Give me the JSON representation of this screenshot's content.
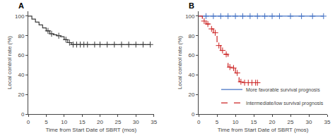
{
  "chart_data": [
    {
      "type": "line",
      "xlabel": "Time from Start Date of SBRT (mos)",
      "ylabel": "Local control rate (%)",
      "xlim": [
        0,
        35
      ],
      "ylim": [
        0,
        105
      ],
      "xticks": [
        0,
        5,
        10,
        15,
        20,
        25,
        30,
        35
      ],
      "yticks": [
        0,
        20,
        40,
        60,
        80,
        100
      ],
      "grid": false,
      "annotations": [
        "A"
      ],
      "series": [
        {
          "type": "line",
          "color": "#3a3a3a",
          "line_style": "solid",
          "x": [
            0,
            1,
            1,
            2,
            2,
            3,
            3,
            4,
            4,
            5,
            5,
            6,
            6,
            7,
            7,
            8,
            8,
            9,
            9,
            10,
            10,
            11,
            11,
            12,
            12,
            34
          ],
          "values": [
            100,
            100,
            97,
            97,
            94,
            94,
            91,
            91,
            88,
            88,
            85,
            85,
            82,
            82,
            81,
            81,
            80,
            80,
            79,
            79,
            76,
            76,
            73,
            73,
            71,
            71
          ]
        },
        {
          "type": "scatter",
          "color": "#3a3a3a",
          "marker": "cross",
          "x": [
            5.5,
            6.5,
            8.5,
            10.5,
            11.5,
            12.5,
            13.5,
            14.5,
            15.5,
            16.5,
            18.5,
            20,
            22,
            24,
            26,
            28,
            30,
            32,
            34
          ],
          "values": [
            85,
            82,
            80,
            76,
            73,
            71,
            71,
            71,
            71,
            71,
            71,
            71,
            71,
            71,
            71,
            71,
            71,
            71,
            71
          ]
        }
      ]
    },
    {
      "type": "line",
      "xlabel": "Time from Start Date of SBRT (mos)",
      "ylabel": "Local control rate (%)",
      "xlim": [
        0,
        35
      ],
      "ylim": [
        0,
        105
      ],
      "xticks": [
        0,
        5,
        10,
        15,
        20,
        25,
        30,
        35
      ],
      "yticks": [
        0,
        20,
        40,
        60,
        80,
        100
      ],
      "grid": false,
      "legend": "lower right",
      "annotations": [
        "B"
      ],
      "series": [
        {
          "type": "line",
          "name": "More favorable survival prognosis",
          "color": "#4472c4",
          "line_style": "solid",
          "x": [
            0,
            34
          ],
          "values": [
            100,
            100
          ]
        },
        {
          "type": "scatter",
          "color": "#4472c4",
          "marker": "cross",
          "x": [
            2,
            4,
            6,
            8,
            10,
            12,
            14,
            16,
            18,
            20,
            22,
            25,
            28,
            31,
            34
          ],
          "values": [
            100,
            100,
            100,
            100,
            100,
            100,
            100,
            100,
            100,
            100,
            100,
            100,
            100,
            100,
            100
          ]
        },
        {
          "type": "line",
          "name": "Intermediate/low survival prognosis",
          "color": "#cc2222",
          "line_style": "dashed",
          "x": [
            0,
            1,
            1,
            2,
            2,
            3,
            3,
            4,
            4,
            5,
            5,
            6,
            6,
            7,
            7,
            8,
            8,
            9,
            9,
            10,
            10,
            11,
            11,
            12,
            12,
            16,
            16
          ],
          "values": [
            100,
            100,
            95,
            95,
            92,
            92,
            87,
            87,
            83,
            83,
            70,
            70,
            65,
            65,
            61,
            61,
            48,
            48,
            47,
            47,
            42,
            42,
            33,
            33,
            32,
            32,
            32
          ]
        },
        {
          "type": "scatter",
          "color": "#cc2222",
          "marker": "cross",
          "x": [
            1.5,
            2.5,
            3.5,
            4.5,
            5.5,
            6.5,
            7.5,
            8.5,
            9.5,
            10.5,
            11.5,
            12.5,
            13.5,
            14.5,
            15.5,
            16
          ],
          "values": [
            95,
            92,
            87,
            83,
            70,
            65,
            61,
            48,
            47,
            42,
            33,
            32,
            32,
            32,
            32,
            32
          ]
        }
      ]
    }
  ]
}
